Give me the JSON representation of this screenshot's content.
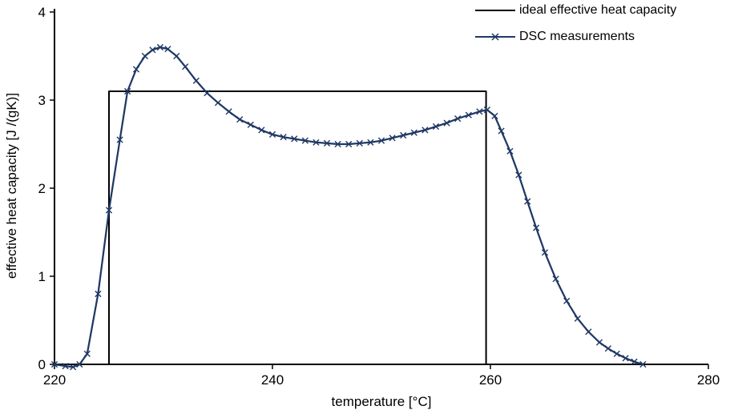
{
  "figure": {
    "background_color": "#ffffff",
    "axis_color": "#000000"
  },
  "chart_data": {
    "type": "line",
    "title": "",
    "xlabel": "temperature [°C]",
    "ylabel": "effective heat capacity [J /(gK)]",
    "xlim": [
      220,
      280
    ],
    "ylim": [
      0,
      4
    ],
    "xticks": [
      220,
      240,
      260,
      280
    ],
    "yticks": [
      0,
      1,
      2,
      3,
      4
    ],
    "grid": false,
    "legend_position": "top-right",
    "series": [
      {
        "name": "ideal effective heat capacity",
        "color": "#000000",
        "marker": "none",
        "line_width": 2,
        "points": [
          [
            225,
            0
          ],
          [
            225,
            3.1
          ],
          [
            259.6,
            3.1
          ],
          [
            259.6,
            0
          ]
        ]
      },
      {
        "name": "DSC measurements",
        "color": "#1F3864",
        "marker": "x",
        "line_width": 2.25,
        "points": [
          [
            220,
            0
          ],
          [
            221,
            -0.02
          ],
          [
            221.7,
            -0.03
          ],
          [
            222.3,
            0
          ],
          [
            223,
            0.12
          ],
          [
            224,
            0.8
          ],
          [
            225,
            1.75
          ],
          [
            226,
            2.55
          ],
          [
            226.7,
            3.1
          ],
          [
            227.5,
            3.35
          ],
          [
            228.3,
            3.5
          ],
          [
            229,
            3.57
          ],
          [
            229.7,
            3.6
          ],
          [
            230.4,
            3.58
          ],
          [
            231.2,
            3.5
          ],
          [
            232,
            3.38
          ],
          [
            233,
            3.22
          ],
          [
            234,
            3.08
          ],
          [
            235,
            2.97
          ],
          [
            236,
            2.87
          ],
          [
            237,
            2.78
          ],
          [
            238,
            2.72
          ],
          [
            239,
            2.66
          ],
          [
            240,
            2.61
          ],
          [
            241,
            2.58
          ],
          [
            242,
            2.56
          ],
          [
            243,
            2.54
          ],
          [
            244,
            2.52
          ],
          [
            245,
            2.51
          ],
          [
            246,
            2.5
          ],
          [
            247,
            2.5
          ],
          [
            248,
            2.51
          ],
          [
            249,
            2.52
          ],
          [
            250,
            2.54
          ],
          [
            251,
            2.57
          ],
          [
            252,
            2.6
          ],
          [
            253,
            2.63
          ],
          [
            254,
            2.66
          ],
          [
            255,
            2.7
          ],
          [
            256,
            2.74
          ],
          [
            257,
            2.79
          ],
          [
            258,
            2.83
          ],
          [
            259,
            2.87
          ],
          [
            259.7,
            2.89
          ],
          [
            260.4,
            2.82
          ],
          [
            261,
            2.65
          ],
          [
            261.8,
            2.42
          ],
          [
            262.6,
            2.15
          ],
          [
            263.4,
            1.85
          ],
          [
            264.2,
            1.55
          ],
          [
            265,
            1.27
          ],
          [
            266,
            0.97
          ],
          [
            267,
            0.72
          ],
          [
            268,
            0.52
          ],
          [
            269,
            0.37
          ],
          [
            270,
            0.25
          ],
          [
            270.8,
            0.18
          ],
          [
            271.6,
            0.12
          ],
          [
            272.4,
            0.07
          ],
          [
            273.2,
            0.03
          ],
          [
            274,
            0
          ]
        ]
      }
    ]
  }
}
